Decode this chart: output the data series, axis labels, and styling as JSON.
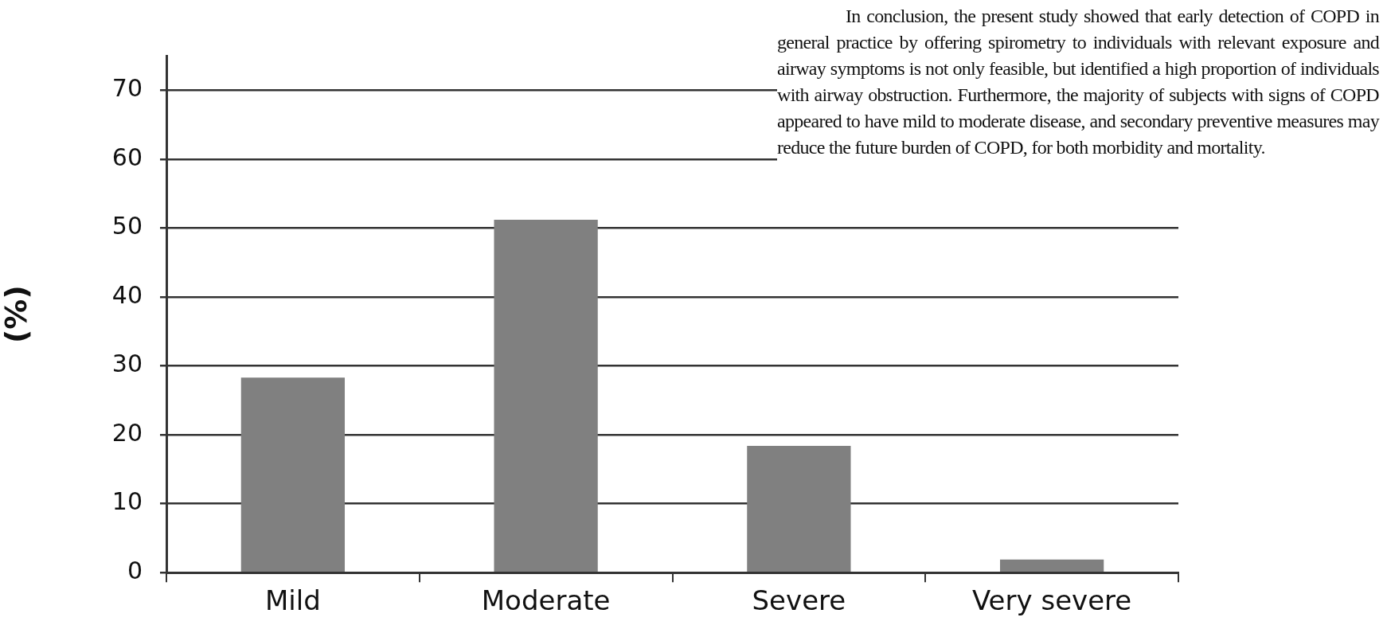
{
  "chart_data": {
    "type": "bar",
    "ylabel": "(%)",
    "categories": [
      "Mild",
      "Moderate",
      "Severe",
      "Very severe"
    ],
    "values": [
      28.3,
      51.2,
      18.4,
      1.9
    ],
    "color": "#808080",
    "ylim": [
      0,
      75
    ],
    "yticks": [
      0,
      10,
      20,
      30,
      40,
      50,
      60,
      70
    ],
    "grid": "y",
    "legend": false,
    "annotations": [
      "In conclusion, the present study showed that early detection of COPD in general practice by offering spirometry to individuals with relevant exposure and airway symptoms is not only feasible, but identified a high proportion of individuals with airway obstruction. Furthermore, the majority of subjects with signs of COPD appeared to have mild to moderate disease, and secondary preventive measures may reduce the future burden of COPD, for both morbidity and mortality."
    ]
  }
}
